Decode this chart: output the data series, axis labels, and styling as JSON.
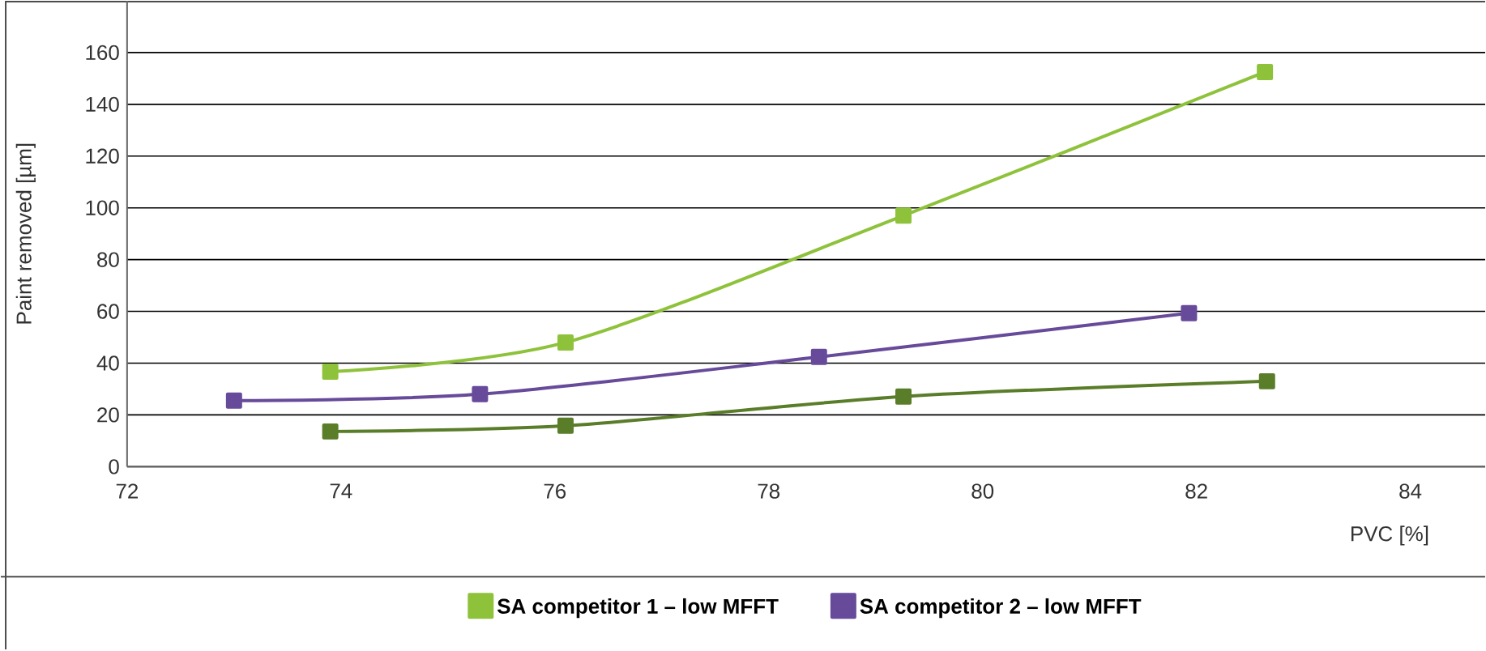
{
  "chart_data": {
    "type": "line",
    "xlabel": "PVC [%]",
    "ylabel": "Paint removed [µm]",
    "xlim": [
      72,
      84.7
    ],
    "xticks": [
      72,
      74,
      76,
      78,
      80,
      82,
      84
    ],
    "ylim": [
      0,
      180
    ],
    "yticks": [
      0,
      20,
      40,
      60,
      80,
      100,
      120,
      140,
      160
    ],
    "grid": "y",
    "marker": "square",
    "legend": "bottom",
    "series": [
      {
        "color": "#5a7d2a",
        "x": [
          73.9,
          76.1,
          79.26,
          82.66
        ],
        "values": [
          13.6,
          15.8,
          27.1,
          33
        ]
      },
      {
        "name": "SA competitor 1 – low MFFT",
        "color": "#8fc23b",
        "x": [
          73.9,
          76.1,
          79.26,
          82.64
        ],
        "values": [
          36.7,
          48,
          97,
          152.5
        ]
      },
      {
        "name": "SA competitor 2 – low MFFT",
        "color": "#674a9a",
        "x": [
          73.0,
          75.3,
          78.47,
          81.93
        ],
        "values": [
          25.5,
          28,
          42.4,
          59.3
        ]
      }
    ]
  }
}
